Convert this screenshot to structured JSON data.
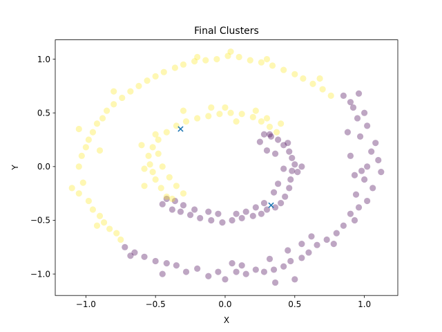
{
  "chart_data": {
    "type": "scatter",
    "title": "Final Clusters",
    "xlabel": "X",
    "ylabel": "Y",
    "xlim": [
      -1.22,
      1.24
    ],
    "ylim": [
      -1.2,
      1.18
    ],
    "xticks": [
      -1.0,
      -0.5,
      0.0,
      0.5,
      1.0
    ],
    "xtick_labels": [
      "−1.0",
      "−0.5",
      "0.0",
      "0.5",
      "1.0"
    ],
    "yticks": [
      -1.0,
      -0.5,
      0.0,
      0.5,
      1.0
    ],
    "ytick_labels": [
      "−1.0",
      "−0.5",
      "0.0",
      "0.5",
      "1.0"
    ],
    "grid": false,
    "legend": "none",
    "colors": {
      "cluster_0": "#440154",
      "cluster_1": "#fde725",
      "centroid": "#1f77b4"
    },
    "point_opacity": 0.35,
    "clusters": [
      {
        "color": "#440154",
        "points": [
          [
            0.96,
            0.68
          ],
          [
            0.9,
            0.6
          ],
          [
            1.0,
            0.5
          ],
          [
            0.95,
            0.45
          ],
          [
            1.02,
            0.38
          ],
          [
            0.97,
            0.28
          ],
          [
            1.08,
            0.22
          ],
          [
            1.05,
            0.14
          ],
          [
            1.1,
            0.06
          ],
          [
            1.02,
            0.0
          ],
          [
            0.98,
            -0.04
          ],
          [
            1.12,
            -0.05
          ],
          [
            1.0,
            -0.12
          ],
          [
            1.06,
            -0.2
          ],
          [
            0.94,
            -0.26
          ],
          [
            1.02,
            -0.32
          ],
          [
            0.96,
            -0.38
          ],
          [
            0.9,
            -0.44
          ],
          [
            0.93,
            -0.5
          ],
          [
            0.85,
            -0.55
          ],
          [
            0.8,
            -0.62
          ],
          [
            0.73,
            -0.68
          ],
          [
            0.78,
            -0.72
          ],
          [
            0.66,
            -0.73
          ],
          [
            0.6,
            -0.8
          ],
          [
            0.55,
            -0.85
          ],
          [
            0.47,
            -0.88
          ],
          [
            0.42,
            -0.93
          ],
          [
            0.35,
            -0.96
          ],
          [
            0.28,
            -0.98
          ],
          [
            0.22,
            -0.96
          ],
          [
            0.15,
            -1.0
          ],
          [
            0.08,
            -0.98
          ],
          [
            0.0,
            -1.05
          ],
          [
            -0.05,
            -0.98
          ],
          [
            -0.12,
            -1.02
          ],
          [
            -0.2,
            -0.95
          ],
          [
            -0.28,
            -0.98
          ],
          [
            -0.35,
            -0.92
          ],
          [
            -0.42,
            -0.9
          ],
          [
            -0.5,
            -0.88
          ],
          [
            -0.58,
            -0.84
          ],
          [
            -0.65,
            -0.8
          ],
          [
            -0.72,
            -0.75
          ],
          [
            -0.68,
            -0.83
          ],
          [
            0.36,
            -1.08
          ],
          [
            0.5,
            -1.05
          ],
          [
            -0.45,
            -1.0
          ],
          [
            0.05,
            -0.9
          ],
          [
            0.12,
            -0.92
          ],
          [
            0.32,
            -0.86
          ],
          [
            0.45,
            -0.78
          ],
          [
            0.62,
            -0.65
          ],
          [
            0.55,
            -0.72
          ],
          [
            0.9,
            0.1
          ],
          [
            0.93,
            -0.08
          ],
          [
            0.88,
            0.32
          ],
          [
            0.92,
            0.55
          ],
          [
            0.85,
            0.66
          ],
          [
            -0.45,
            -0.35
          ],
          [
            -0.38,
            -0.4
          ],
          [
            -0.32,
            -0.42
          ],
          [
            -0.25,
            -0.45
          ],
          [
            -0.18,
            -0.48
          ],
          [
            -0.1,
            -0.5
          ],
          [
            -0.02,
            -0.52
          ],
          [
            0.05,
            -0.5
          ],
          [
            0.12,
            -0.48
          ],
          [
            0.2,
            -0.46
          ],
          [
            0.26,
            -0.44
          ],
          [
            0.3,
            -0.4
          ],
          [
            0.36,
            -0.38
          ],
          [
            0.4,
            -0.34
          ],
          [
            0.43,
            -0.28
          ],
          [
            0.46,
            -0.2
          ],
          [
            0.47,
            -0.12
          ],
          [
            0.48,
            -0.04
          ],
          [
            0.5,
            0.02
          ],
          [
            0.48,
            0.08
          ],
          [
            0.46,
            0.14
          ],
          [
            0.42,
            0.2
          ],
          [
            0.38,
            0.25
          ],
          [
            0.33,
            0.28
          ],
          [
            0.28,
            0.3
          ],
          [
            0.25,
            0.23
          ],
          [
            0.3,
            0.15
          ],
          [
            0.36,
            0.12
          ],
          [
            0.42,
            -0.02
          ],
          [
            0.38,
            -0.16
          ],
          [
            0.35,
            -0.24
          ],
          [
            0.28,
            -0.34
          ],
          [
            0.22,
            -0.38
          ],
          [
            0.15,
            -0.42
          ],
          [
            0.08,
            -0.44
          ],
          [
            -0.05,
            -0.44
          ],
          [
            -0.12,
            -0.42
          ],
          [
            -0.22,
            -0.4
          ],
          [
            -0.3,
            -0.36
          ],
          [
            -0.36,
            -0.32
          ],
          [
            -0.42,
            -0.3
          ],
          [
            0.52,
            -0.05
          ],
          [
            0.55,
            0.0
          ],
          [
            0.45,
            0.22
          ],
          [
            0.32,
            0.3
          ]
        ]
      },
      {
        "color": "#fde725",
        "points": [
          [
            -1.1,
            -0.2
          ],
          [
            -1.05,
            -0.25
          ],
          [
            -1.02,
            -0.15
          ],
          [
            -1.05,
            0.0
          ],
          [
            -1.03,
            0.1
          ],
          [
            -1.0,
            0.18
          ],
          [
            -0.98,
            0.25
          ],
          [
            -0.95,
            0.32
          ],
          [
            -0.92,
            0.4
          ],
          [
            -0.88,
            0.45
          ],
          [
            -0.85,
            0.52
          ],
          [
            -0.8,
            0.58
          ],
          [
            -0.74,
            0.64
          ],
          [
            -0.68,
            0.7
          ],
          [
            -0.62,
            0.75
          ],
          [
            -0.56,
            0.8
          ],
          [
            -0.5,
            0.84
          ],
          [
            -0.44,
            0.88
          ],
          [
            -0.36,
            0.92
          ],
          [
            -0.3,
            0.95
          ],
          [
            -0.22,
            0.98
          ],
          [
            -0.14,
            0.99
          ],
          [
            -0.06,
            1.0
          ],
          [
            0.02,
            1.03
          ],
          [
            0.1,
            1.02
          ],
          [
            0.18,
            0.99
          ],
          [
            0.26,
            0.97
          ],
          [
            0.34,
            0.94
          ],
          [
            0.42,
            0.9
          ],
          [
            0.5,
            0.86
          ],
          [
            0.56,
            0.82
          ],
          [
            0.63,
            0.77
          ],
          [
            0.7,
            0.72
          ],
          [
            0.76,
            0.66
          ],
          [
            -0.98,
            -0.32
          ],
          [
            -0.95,
            -0.4
          ],
          [
            -0.9,
            -0.46
          ],
          [
            -0.87,
            -0.52
          ],
          [
            -0.83,
            -0.58
          ],
          [
            -0.78,
            -0.62
          ],
          [
            -0.75,
            -0.68
          ],
          [
            -0.92,
            -0.55
          ],
          [
            -1.05,
            0.35
          ],
          [
            -0.9,
            0.15
          ],
          [
            -0.8,
            0.7
          ],
          [
            0.04,
            1.07
          ],
          [
            0.3,
            1.0
          ],
          [
            -0.2,
            1.02
          ],
          [
            0.68,
            0.82
          ],
          [
            -0.42,
            0.32
          ],
          [
            -0.48,
            0.25
          ],
          [
            -0.52,
            0.18
          ],
          [
            -0.55,
            0.1
          ],
          [
            -0.54,
            0.02
          ],
          [
            -0.52,
            -0.05
          ],
          [
            -0.5,
            -0.12
          ],
          [
            -0.46,
            -0.2
          ],
          [
            -0.42,
            -0.28
          ],
          [
            -0.38,
            -0.3
          ],
          [
            -0.35,
            0.38
          ],
          [
            -0.28,
            0.42
          ],
          [
            -0.2,
            0.45
          ],
          [
            -0.12,
            0.47
          ],
          [
            -0.04,
            0.49
          ],
          [
            0.04,
            0.5
          ],
          [
            0.12,
            0.49
          ],
          [
            0.2,
            0.46
          ],
          [
            0.26,
            0.42
          ],
          [
            0.32,
            0.37
          ],
          [
            0.37,
            0.32
          ],
          [
            -0.45,
            0.0
          ],
          [
            -0.4,
            -0.1
          ],
          [
            -0.3,
            -0.25
          ],
          [
            -0.48,
            0.12
          ],
          [
            -0.58,
            -0.02
          ],
          [
            0.0,
            0.55
          ],
          [
            0.08,
            0.42
          ],
          [
            -0.1,
            0.55
          ],
          [
            0.22,
            0.52
          ],
          [
            -0.3,
            0.52
          ],
          [
            -0.5,
            0.3
          ],
          [
            -0.6,
            0.2
          ],
          [
            -0.35,
            -0.18
          ],
          [
            -0.58,
            -0.18
          ],
          [
            0.3,
            0.45
          ],
          [
            0.4,
            0.4
          ]
        ]
      }
    ],
    "centroids": [
      [
        -0.32,
        0.35
      ],
      [
        0.33,
        -0.36
      ]
    ]
  }
}
